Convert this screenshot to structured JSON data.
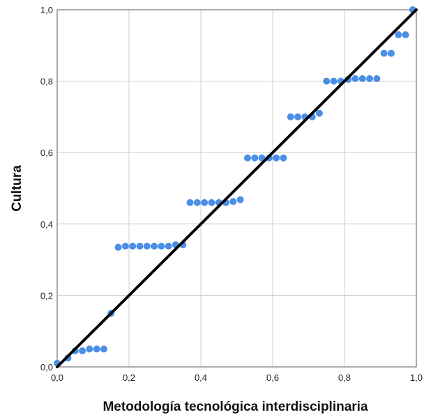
{
  "chart_data": {
    "type": "scatter",
    "xlabel": "Metodología tecnológica interdisciplinaria",
    "ylabel": "Cultura",
    "xlim": [
      0,
      1
    ],
    "ylim": [
      0,
      1
    ],
    "x_ticks": [
      "0,0",
      "0,2",
      "0,4",
      "0,6",
      "0,8",
      "1,0"
    ],
    "y_ticks": [
      "0,0",
      "0,2",
      "0,4",
      "0,6",
      "0,8",
      "1,0"
    ],
    "grid": true,
    "reference_line": {
      "from": [
        0,
        0
      ],
      "to": [
        1,
        1
      ],
      "color": "#000000"
    },
    "marker_color": "#4a8ee6",
    "points": [
      [
        0.0,
        0.01
      ],
      [
        0.03,
        0.025
      ],
      [
        0.05,
        0.045
      ],
      [
        0.07,
        0.045
      ],
      [
        0.09,
        0.05
      ],
      [
        0.11,
        0.05
      ],
      [
        0.13,
        0.05
      ],
      [
        0.15,
        0.15
      ],
      [
        0.17,
        0.335
      ],
      [
        0.19,
        0.338
      ],
      [
        0.21,
        0.338
      ],
      [
        0.23,
        0.338
      ],
      [
        0.25,
        0.338
      ],
      [
        0.27,
        0.338
      ],
      [
        0.29,
        0.338
      ],
      [
        0.31,
        0.338
      ],
      [
        0.33,
        0.342
      ],
      [
        0.35,
        0.342
      ],
      [
        0.37,
        0.46
      ],
      [
        0.39,
        0.46
      ],
      [
        0.41,
        0.46
      ],
      [
        0.43,
        0.46
      ],
      [
        0.45,
        0.46
      ],
      [
        0.47,
        0.46
      ],
      [
        0.49,
        0.463
      ],
      [
        0.51,
        0.468
      ],
      [
        0.53,
        0.585
      ],
      [
        0.55,
        0.585
      ],
      [
        0.57,
        0.585
      ],
      [
        0.59,
        0.585
      ],
      [
        0.61,
        0.585
      ],
      [
        0.63,
        0.585
      ],
      [
        0.65,
        0.7
      ],
      [
        0.67,
        0.7
      ],
      [
        0.69,
        0.7
      ],
      [
        0.71,
        0.7
      ],
      [
        0.73,
        0.71
      ],
      [
        0.75,
        0.8
      ],
      [
        0.77,
        0.8
      ],
      [
        0.79,
        0.8
      ],
      [
        0.81,
        0.805
      ],
      [
        0.83,
        0.807
      ],
      [
        0.85,
        0.807
      ],
      [
        0.87,
        0.807
      ],
      [
        0.89,
        0.807
      ],
      [
        0.91,
        0.878
      ],
      [
        0.93,
        0.878
      ],
      [
        0.95,
        0.93
      ],
      [
        0.97,
        0.93
      ],
      [
        0.99,
        1.0
      ]
    ]
  }
}
